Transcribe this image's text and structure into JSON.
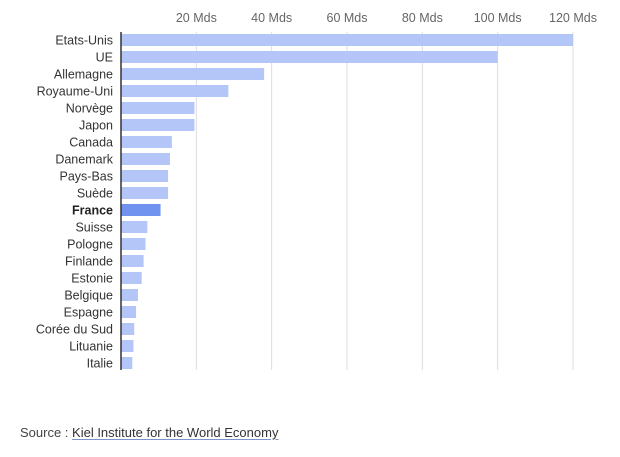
{
  "chart_data": {
    "type": "bar",
    "orientation": "horizontal",
    "categories": [
      "Etats-Unis",
      "UE",
      "Allemagne",
      "Royaume-Uni",
      "Norvège",
      "Japon",
      "Canada",
      "Danemark",
      "Pays-Bas",
      "Suède",
      "France",
      "Suisse",
      "Pologne",
      "Finlande",
      "Estonie",
      "Belgique",
      "Espagne",
      "Corée du Sud",
      "Lituanie",
      "Italie"
    ],
    "values": [
      120,
      100,
      38,
      28.5,
      19.5,
      19.5,
      13.5,
      13,
      12.5,
      12.5,
      10.5,
      7,
      6.5,
      6,
      5.5,
      4.5,
      4,
      3.5,
      3.3,
      3
    ],
    "highlight": "France",
    "xticks": [
      20,
      40,
      60,
      80,
      100,
      120
    ],
    "xtick_labels": [
      "20 Mds",
      "40 Mds",
      "60 Mds",
      "80 Mds",
      "100 Mds",
      "120 Mds"
    ],
    "xlim": [
      0,
      120
    ],
    "grid": true,
    "colors": {
      "bar": "#b3c6f7",
      "highlight": "#6f93ee",
      "grid": "#dddddd",
      "axis": "#333333"
    }
  },
  "source": {
    "prefix": "Source : ",
    "link": "Kiel Institute for the World Economy"
  }
}
